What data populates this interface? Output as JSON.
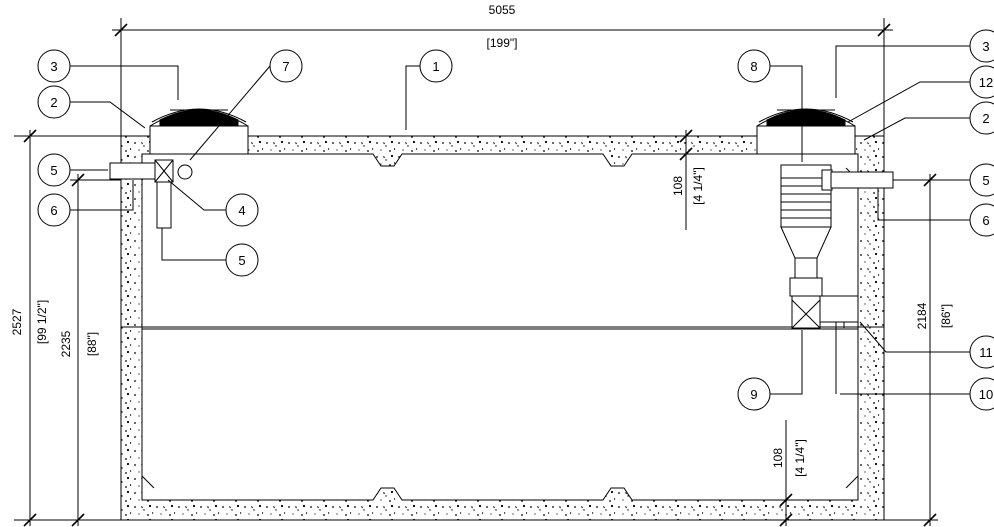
{
  "dimensions": {
    "overall_width_mm": "5055",
    "overall_width_in": "[199\"]",
    "overall_height_mm": "2527",
    "overall_height_in": "[99 1/2\"]",
    "inner_height_mm": "2235",
    "inner_height_in": "[88\"]",
    "liquid_height_mm": "2184",
    "liquid_height_in": "[86\"]",
    "top_slab_mm": "108",
    "top_slab_in": "[4 1/4\"]",
    "bottom_slab_mm": "108",
    "bottom_slab_in": "[4 1/4\"]"
  },
  "callouts": {
    "c1": "1",
    "c2_left": "2",
    "c3_left": "3",
    "c4": "4",
    "c5_left_top": "5",
    "c5_left_bottom": "5",
    "c6_left": "6",
    "c7": "7",
    "c8": "8",
    "c9": "9",
    "c3_right": "3",
    "c12": "12",
    "c2_right": "2",
    "c5_right": "5",
    "c6_right": "6",
    "c11": "11",
    "c10": "10"
  },
  "colors": {
    "line": "#000000",
    "concrete_fill": "#ffffff"
  }
}
